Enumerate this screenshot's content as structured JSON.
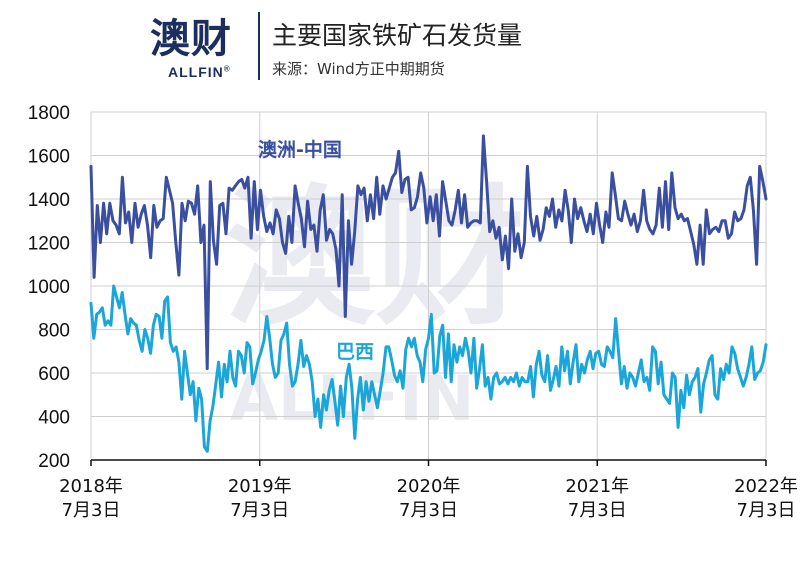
{
  "header": {
    "logo_text": "澳财",
    "logo_sub": "ALLFIN",
    "title": "主要国家铁矿石发货量",
    "source": "来源：Wind方正中期期货"
  },
  "colors": {
    "australia": "#3b4fa0",
    "brazil": "#1ba6d9",
    "grid": "#cfcfcf",
    "brand": "#1c2e5e"
  },
  "chart_data": {
    "type": "line",
    "title": "主要国家铁矿石发货量",
    "ylim": [
      200,
      1800
    ],
    "yticks": [
      200,
      400,
      600,
      800,
      1000,
      1200,
      1400,
      1600,
      1800
    ],
    "grid": true,
    "xtick_labels": [
      [
        "2018年",
        "7月3日"
      ],
      [
        "2019年",
        "7月3日"
      ],
      [
        "2020年",
        "7月3日"
      ],
      [
        "2021年",
        "7月3日"
      ],
      [
        "2022年",
        "7月3日"
      ]
    ],
    "x_range": [
      "2018-07-03",
      "2022-07-03"
    ],
    "series": [
      {
        "name": "澳洲-中国",
        "values": [
          1550,
          1040,
          1370,
          1200,
          1380,
          1240,
          1380,
          1300,
          1280,
          1240,
          1500,
          1290,
          1340,
          1200,
          1380,
          1270,
          1330,
          1370,
          1280,
          1130,
          1370,
          1270,
          1300,
          1310,
          1500,
          1440,
          1380,
          1200,
          1050,
          1380,
          1300,
          1390,
          1380,
          1330,
          1460,
          1200,
          1280,
          620,
          1480,
          1210,
          1100,
          1370,
          1380,
          1240,
          1450,
          1440,
          1460,
          1480,
          1490,
          1450,
          1500,
          1220,
          1480,
          1260,
          1440,
          1320,
          1250,
          1290,
          1240,
          1350,
          1310,
          1200,
          1150,
          1320,
          1200,
          1460,
          1380,
          1310,
          1180,
          1390,
          1260,
          1280,
          1160,
          1350,
          1420,
          1210,
          1260,
          1240,
          1170,
          1000,
          1420,
          860,
          1300,
          1100,
          1250,
          1460,
          1420,
          1450,
          1300,
          1420,
          1310,
          1500,
          1330,
          1460,
          1400,
          1450,
          1500,
          1520,
          1620,
          1430,
          1490,
          1500,
          1350,
          1360,
          1410,
          1520,
          1450,
          1290,
          1410,
          1300,
          1420,
          1230,
          1480,
          1390,
          1300,
          1280,
          1350,
          1440,
          1290,
          1420,
          1270,
          1290,
          1300,
          1300,
          1290,
          1690,
          1480,
          1250,
          1300,
          1220,
          1270,
          1120,
          1230,
          1080,
          1400,
          1160,
          1240,
          1130,
          1200,
          1550,
          1320,
          1230,
          1320,
          1210,
          1260,
          1360,
          1320,
          1400,
          1270,
          1350,
          1300,
          1440,
          1350,
          1200,
          1400,
          1310,
          1360,
          1300,
          1250,
          1330,
          1240,
          1380,
          1280,
          1200,
          1340,
          1270,
          1520,
          1420,
          1310,
          1300,
          1390,
          1330,
          1280,
          1330,
          1250,
          1300,
          1440,
          1300,
          1260,
          1240,
          1280,
          1450,
          1270,
          1480,
          1260,
          1520,
          1360,
          1310,
          1330,
          1300,
          1310,
          1250,
          1190,
          1100,
          1280,
          1100,
          1350,
          1240,
          1260,
          1270,
          1250,
          1300,
          1300,
          1220,
          1240,
          1340,
          1300,
          1310,
          1350,
          1460,
          1500,
          1350,
          1100,
          1550,
          1480,
          1400
        ]
      },
      {
        "name": "巴西",
        "values": [
          920,
          760,
          870,
          880,
          900,
          820,
          840,
          820,
          1000,
          950,
          900,
          970,
          870,
          780,
          850,
          830,
          820,
          750,
          700,
          800,
          760,
          690,
          820,
          870,
          860,
          760,
          930,
          950,
          740,
          700,
          720,
          650,
          480,
          700,
          600,
          500,
          560,
          380,
          530,
          480,
          260,
          240,
          380,
          450,
          550,
          650,
          490,
          640,
          560,
          700,
          580,
          540,
          700,
          680,
          600,
          740,
          720,
          550,
          600,
          660,
          700,
          750,
          860,
          760,
          640,
          580,
          600,
          750,
          780,
          830,
          640,
          540,
          560,
          640,
          750,
          630,
          680,
          640,
          560,
          400,
          480,
          350,
          500,
          430,
          520,
          570,
          470,
          360,
          540,
          400,
          580,
          640,
          530,
          300,
          480,
          580,
          430,
          560,
          470,
          560,
          500,
          440,
          520,
          600,
          720,
          720,
          660,
          590,
          560,
          610,
          530,
          710,
          760,
          720,
          760,
          680,
          650,
          560,
          710,
          760,
          870,
          600,
          610,
          770,
          820,
          580,
          780,
          560,
          730,
          650,
          720,
          680,
          760,
          700,
          600,
          760,
          530,
          620,
          730,
          540,
          580,
          480,
          580,
          600,
          550,
          560,
          580,
          550,
          580,
          560,
          600,
          540,
          580,
          560,
          560,
          630,
          490,
          640,
          700,
          590,
          560,
          680,
          520,
          570,
          630,
          540,
          720,
          610,
          700,
          550,
          650,
          730,
          560,
          640,
          600,
          660,
          700,
          620,
          690,
          700,
          640,
          630,
          720,
          700,
          670,
          850,
          700,
          550,
          630,
          530,
          600,
          580,
          540,
          600,
          660,
          560,
          580,
          520,
          720,
          700,
          550,
          650,
          500,
          480,
          460,
          600,
          580,
          350,
          520,
          440,
          590,
          500,
          560,
          580,
          620,
          420,
          550,
          600,
          660,
          680,
          500,
          480,
          620,
          570,
          640,
          600,
          720,
          690,
          620,
          580,
          540,
          580,
          640,
          720,
          570,
          600,
          610,
          650,
          730
        ]
      }
    ]
  }
}
